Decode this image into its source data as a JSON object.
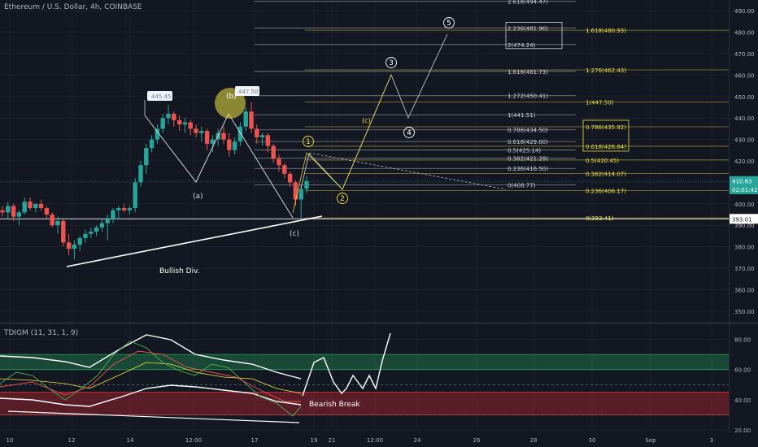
{
  "header": {
    "symbol": "Ethereum / U.S. Dollar, 4h, COINBASE",
    "indicator": "TDIGM (11, 31, 1, 9)"
  },
  "colors": {
    "bg": "#131722",
    "up": "#26a69a",
    "down": "#ef5350",
    "yellow": "#f0e442",
    "grid": "#1e222d",
    "text": "#b2b5be"
  },
  "chart_data": [
    {
      "type": "candlestick",
      "title": "Ethereum / U.S. Dollar, 4h, COINBASE",
      "ylim": [
        345,
        495
      ],
      "y_ticks": [
        490,
        480,
        470,
        460,
        450,
        440,
        430,
        420,
        410,
        400,
        390,
        380,
        370,
        360,
        350
      ],
      "x_ticks": [
        "10",
        "12",
        "14",
        "12:00",
        "17",
        "19",
        "21",
        "12:00",
        "24",
        "26",
        "28",
        "30",
        "Sep",
        "3"
      ],
      "price_labels": [
        {
          "text": "410.63",
          "value": 410.63
        },
        {
          "text": "02:01:42",
          "value": 408.3
        },
        {
          "text": "393.01",
          "value": 393.01
        }
      ],
      "candles_ohlc": [
        [
          397,
          399,
          394,
          396
        ],
        [
          396,
          401,
          393,
          399
        ],
        [
          399,
          400,
          392,
          394
        ],
        [
          394,
          397,
          390,
          396
        ],
        [
          396,
          403,
          395,
          401
        ],
        [
          401,
          403,
          397,
          398
        ],
        [
          398,
          400,
          396,
          400
        ],
        [
          400,
          402,
          397,
          398
        ],
        [
          398,
          399,
          393,
          395
        ],
        [
          395,
          396,
          389,
          390
        ],
        [
          390,
          394,
          386,
          392
        ],
        [
          392,
          393,
          380,
          382
        ],
        [
          382,
          386,
          376,
          379
        ],
        [
          379,
          383,
          374,
          381
        ],
        [
          381,
          385,
          378,
          384
        ],
        [
          384,
          388,
          382,
          386
        ],
        [
          386,
          389,
          384,
          387
        ],
        [
          387,
          390,
          385,
          389
        ],
        [
          389,
          393,
          387,
          391
        ],
        [
          391,
          395,
          383,
          393
        ],
        [
          393,
          398,
          391,
          397
        ],
        [
          397,
          399,
          393,
          398
        ],
        [
          398,
          400,
          396,
          397
        ],
        [
          397,
          399,
          395,
          398
        ],
        [
          398,
          412,
          396,
          410
        ],
        [
          410,
          420,
          408,
          418
        ],
        [
          418,
          428,
          414,
          426
        ],
        [
          426,
          432,
          424,
          430
        ],
        [
          430,
          437,
          428,
          435
        ],
        [
          435,
          442,
          433,
          440
        ],
        [
          440,
          446,
          437,
          442
        ],
        [
          442,
          443,
          436,
          439
        ],
        [
          439,
          441,
          434,
          437
        ],
        [
          437,
          440,
          433,
          438
        ],
        [
          438,
          439,
          432,
          435
        ],
        [
          435,
          437,
          431,
          433
        ],
        [
          433,
          436,
          429,
          434
        ],
        [
          434,
          435,
          425,
          428
        ],
        [
          428,
          432,
          424,
          430
        ],
        [
          430,
          435,
          427,
          433
        ],
        [
          433,
          436,
          428,
          430
        ],
        [
          430,
          433,
          422,
          425
        ],
        [
          425,
          431,
          423,
          429
        ],
        [
          429,
          438,
          427,
          436
        ],
        [
          436,
          445,
          434,
          443
        ],
        [
          443,
          447.5,
          433,
          435
        ],
        [
          435,
          437,
          428,
          431
        ],
        [
          431,
          433,
          427,
          432
        ],
        [
          432,
          433,
          424,
          427
        ],
        [
          427,
          428,
          419,
          421
        ],
        [
          421,
          423,
          415,
          418
        ],
        [
          418,
          419,
          412,
          414
        ],
        [
          414,
          415,
          408,
          410
        ],
        [
          410,
          411,
          399,
          402
        ],
        [
          402,
          409,
          393.4,
          407
        ],
        [
          407,
          413,
          405,
          410.6
        ]
      ],
      "fib_levels": [
        {
          "label": "2.618(494.47)",
          "value": 494.47,
          "color": "white"
        },
        {
          "label": "2.236(481.96)",
          "value": 481.96,
          "color": "white",
          "boxed": true
        },
        {
          "label": "2(474.24)",
          "value": 474.24,
          "color": "white",
          "boxed": true
        },
        {
          "label": "1.618(461.73)",
          "value": 461.73,
          "color": "white"
        },
        {
          "label": "1.272(450.41)",
          "value": 450.41,
          "color": "white"
        },
        {
          "label": "1(441.51)",
          "value": 441.51,
          "color": "white"
        },
        {
          "label": "0.786(434.50)",
          "value": 434.5,
          "color": "white"
        },
        {
          "label": "0.618(429.00)",
          "value": 429.0,
          "color": "white"
        },
        {
          "label": "0.5(425.14)",
          "value": 425.14,
          "color": "white"
        },
        {
          "label": "0.382(421.28)",
          "value": 421.28,
          "color": "white"
        },
        {
          "label": "0.236(416.50)",
          "value": 416.5,
          "color": "white"
        },
        {
          "label": "0(408.77)",
          "value": 408.77,
          "color": "white"
        },
        {
          "label": "1.618(480.93)",
          "value": 480.93,
          "color": "yellow"
        },
        {
          "label": "1.276(462.43)",
          "value": 462.43,
          "color": "yellow"
        },
        {
          "label": "1(447.50)",
          "value": 447.5,
          "color": "yellow"
        },
        {
          "label": "0.786(435.92)",
          "value": 435.92,
          "color": "yellow",
          "boxed": true
        },
        {
          "label": "0.618(426.84)",
          "value": 426.84,
          "color": "yellow",
          "boxed": true
        },
        {
          "label": "0.5(420.45)",
          "value": 420.45,
          "color": "yellow"
        },
        {
          "label": "0.382(414.07)",
          "value": 414.07,
          "color": "yellow"
        },
        {
          "label": "0.236(406.17)",
          "value": 406.17,
          "color": "yellow"
        },
        {
          "label": "0(393.41)",
          "value": 393.41,
          "color": "yellow"
        }
      ],
      "annotations": {
        "price_tags": [
          "445.45",
          "447.50"
        ],
        "waves_abc": [
          "(a)",
          "(b)",
          "(c)"
        ],
        "waves_impulse": [
          "1",
          "2",
          "3",
          "4",
          "5"
        ],
        "notes": [
          "Bullish Div."
        ]
      }
    },
    {
      "type": "line",
      "title": "TDIGM (11, 31, 1, 9)",
      "ylim": [
        20,
        90
      ],
      "y_ticks": [
        80.0,
        60.0,
        40.0,
        20.0
      ],
      "bands": [
        {
          "from": 60,
          "to": 70,
          "color": "green"
        },
        {
          "from": 30,
          "to": 45,
          "color": "red"
        }
      ],
      "notes": [
        "Bearish Break"
      ]
    }
  ]
}
